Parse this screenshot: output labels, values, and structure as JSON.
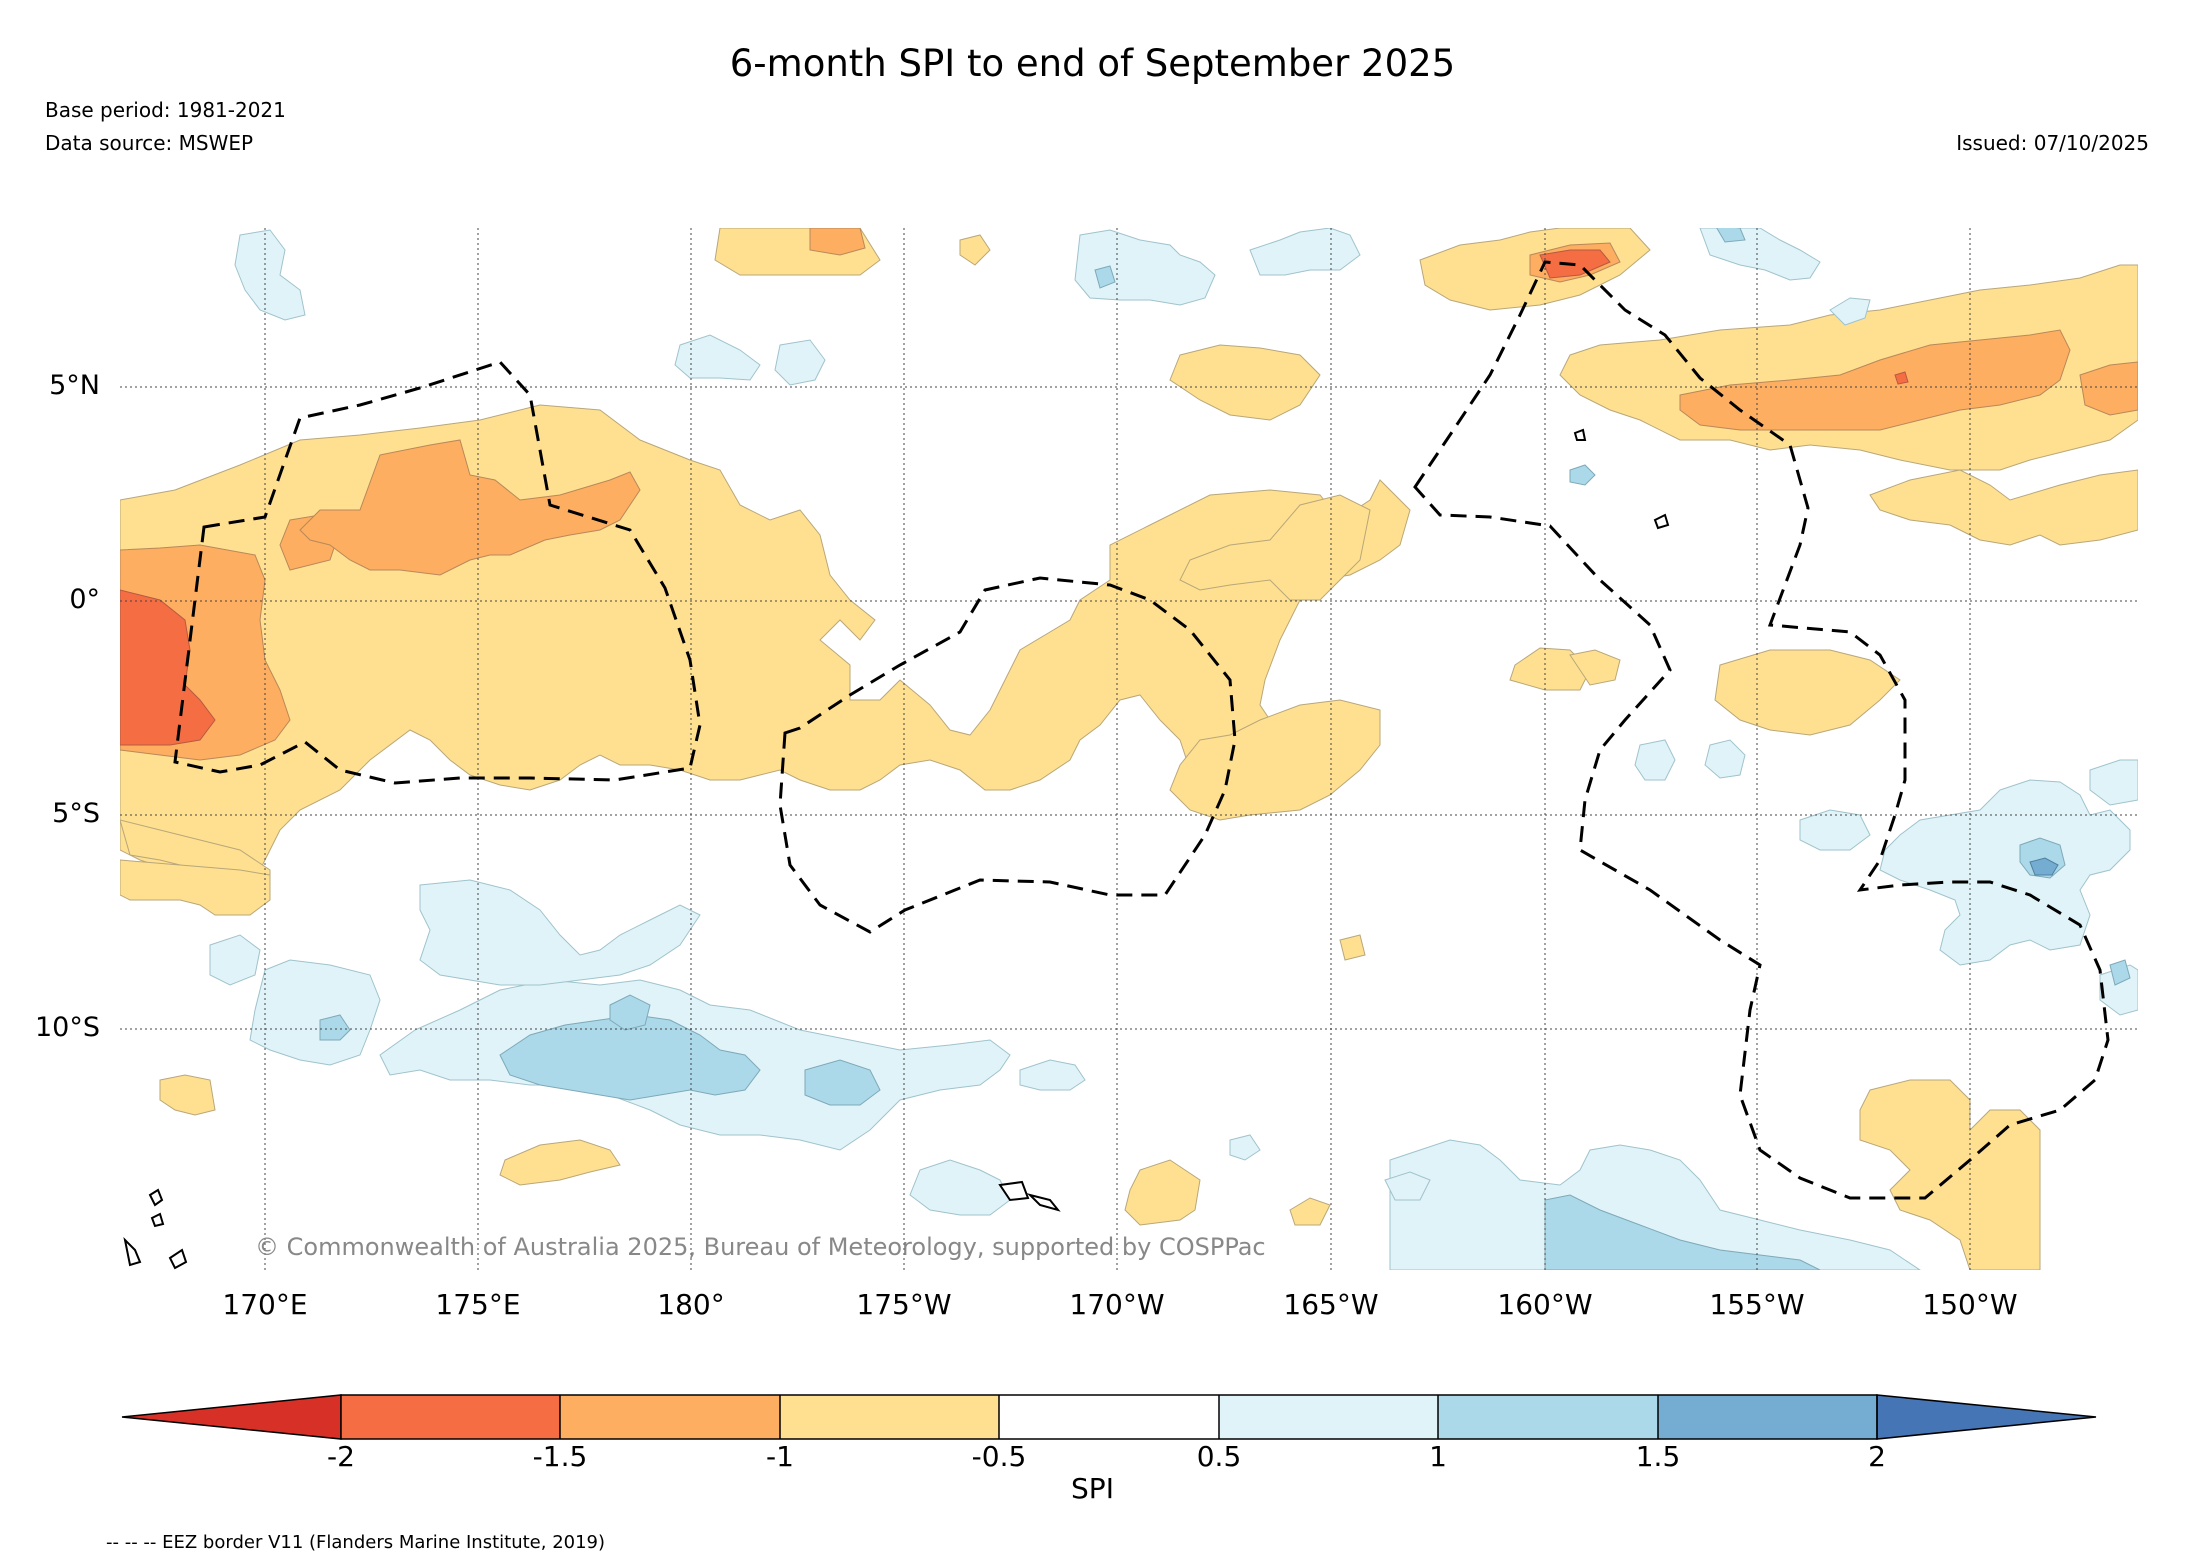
{
  "header": {
    "title": "6-month SPI to end of September 2025",
    "base_period": "Base period: 1981-2021",
    "data_source": "Data source: MSWEP",
    "issued": "Issued: 07/10/2025"
  },
  "map": {
    "lat_labels": [
      "5°N",
      "0°",
      "5°S",
      "10°S"
    ],
    "lon_labels": [
      "170°E",
      "175°E",
      "180°",
      "175°W",
      "170°W",
      "165°W",
      "160°W",
      "155°W",
      "150°W"
    ],
    "credit": "© Commonwealth of Australia 2025, Bureau of Meteorology, supported by COSPPac"
  },
  "colorbar": {
    "label": "SPI",
    "ticks": [
      "-2",
      "-1.5",
      "-1",
      "-0.5",
      "0.5",
      "1",
      "1.5",
      "2"
    ],
    "colors": {
      "below_-2": "#d73027",
      "-2_-1.5": "#f46d43",
      "-1.5_-1": "#fdae61",
      "-1_-0.5": "#fee090",
      "-0.5_0.5": "#ffffff",
      "0.5_1": "#e0f3f8",
      "1_1.5": "#abd9e9",
      "1.5_2": "#74add1",
      "above_2": "#4575b4"
    }
  },
  "legend": {
    "eez_note": "-- -- -- EEZ border V11 (Flanders Marine Institute, 2019)"
  }
}
